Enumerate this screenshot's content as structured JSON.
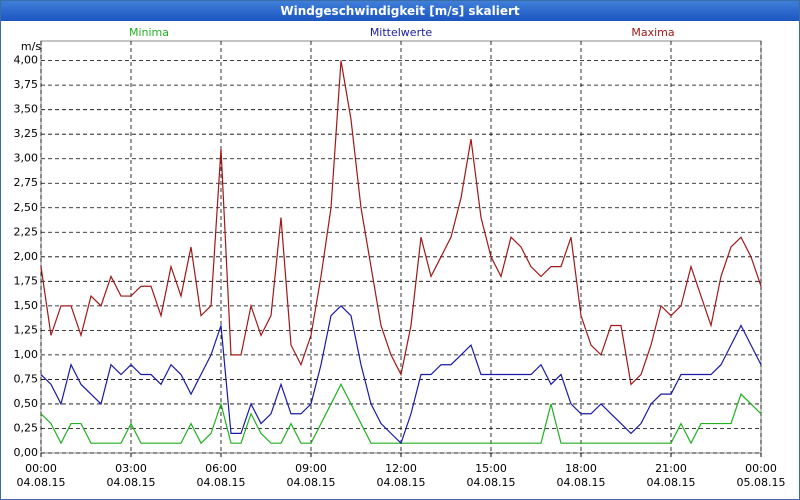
{
  "chart_data": {
    "type": "line",
    "title": "Windgeschwindigkeit [m/s] skaliert",
    "y_label": "m/s",
    "x": [
      0,
      20,
      40,
      60,
      80,
      100,
      120,
      140,
      160,
      180,
      200,
      220,
      240,
      260,
      280,
      300,
      320,
      340,
      360,
      380,
      400,
      420,
      440,
      460,
      480,
      500,
      520,
      540,
      560,
      580,
      600,
      620,
      640,
      660,
      680,
      700,
      720,
      740,
      760,
      780,
      800,
      820,
      840,
      860,
      880,
      900,
      920,
      940,
      960,
      980,
      1000,
      1020,
      1040,
      1060,
      1080,
      1100,
      1120,
      1140,
      1160,
      1180,
      1200,
      1220,
      1240,
      1260,
      1280,
      1300,
      1320,
      1340,
      1360,
      1380,
      1400,
      1420,
      1440
    ],
    "series": [
      {
        "name": "Minima",
        "color": "#22b022",
        "values": [
          0.4,
          0.3,
          0.1,
          0.3,
          0.3,
          0.1,
          0.1,
          0.1,
          0.1,
          0.3,
          0.1,
          0.1,
          0.1,
          0.1,
          0.1,
          0.3,
          0.1,
          0.2,
          0.5,
          0.1,
          0.1,
          0.4,
          0.2,
          0.1,
          0.1,
          0.3,
          0.1,
          0.1,
          0.3,
          0.5,
          0.7,
          0.5,
          0.3,
          0.1,
          0.1,
          0.1,
          0.1,
          0.1,
          0.1,
          0.1,
          0.1,
          0.1,
          0.1,
          0.1,
          0.1,
          0.1,
          0.1,
          0.1,
          0.1,
          0.1,
          0.1,
          0.5,
          0.1,
          0.1,
          0.1,
          0.1,
          0.1,
          0.1,
          0.1,
          0.1,
          0.1,
          0.1,
          0.1,
          0.1,
          0.3,
          0.1,
          0.3,
          0.3,
          0.3,
          0.3,
          0.6,
          0.5,
          0.4
        ]
      },
      {
        "name": "Mittelwerte",
        "color": "#1a1aa8",
        "values": [
          0.8,
          0.7,
          0.5,
          0.9,
          0.7,
          0.6,
          0.5,
          0.9,
          0.8,
          0.9,
          0.8,
          0.8,
          0.7,
          0.9,
          0.8,
          0.6,
          0.8,
          1.0,
          1.3,
          0.2,
          0.2,
          0.5,
          0.3,
          0.4,
          0.7,
          0.4,
          0.4,
          0.5,
          0.9,
          1.4,
          1.5,
          1.4,
          0.9,
          0.5,
          0.3,
          0.2,
          0.1,
          0.4,
          0.8,
          0.8,
          0.9,
          0.9,
          1.0,
          1.1,
          0.8,
          0.8,
          0.8,
          0.8,
          0.8,
          0.8,
          0.9,
          0.7,
          0.8,
          0.5,
          0.4,
          0.4,
          0.5,
          0.4,
          0.3,
          0.2,
          0.3,
          0.5,
          0.6,
          0.6,
          0.8,
          0.8,
          0.8,
          0.8,
          0.9,
          1.1,
          1.3,
          1.1,
          0.9
        ]
      },
      {
        "name": "Maxima",
        "color": "#a01818",
        "values": [
          1.9,
          1.2,
          1.5,
          1.5,
          1.2,
          1.6,
          1.5,
          1.8,
          1.6,
          1.6,
          1.7,
          1.7,
          1.4,
          1.9,
          1.6,
          2.1,
          1.4,
          1.5,
          3.1,
          1.0,
          1.0,
          1.5,
          1.2,
          1.4,
          2.4,
          1.1,
          0.9,
          1.2,
          1.8,
          2.5,
          4.0,
          3.4,
          2.5,
          1.9,
          1.3,
          1.0,
          0.8,
          1.3,
          2.2,
          1.8,
          2.0,
          2.2,
          2.6,
          3.2,
          2.4,
          2.0,
          1.8,
          2.2,
          2.1,
          1.9,
          1.8,
          1.9,
          1.9,
          2.2,
          1.4,
          1.1,
          1.0,
          1.3,
          1.3,
          0.7,
          0.8,
          1.1,
          1.5,
          1.4,
          1.5,
          1.9,
          1.6,
          1.3,
          1.8,
          2.1,
          2.2,
          2.0,
          1.7
        ]
      }
    ],
    "xlim": [
      0,
      1440
    ],
    "xticks": [
      {
        "value": 0,
        "label": "00:00\n04.08.15"
      },
      {
        "value": 180,
        "label": "03:00\n04.08.15"
      },
      {
        "value": 360,
        "label": "06:00\n04.08.15"
      },
      {
        "value": 540,
        "label": "09:00\n04.08.15"
      },
      {
        "value": 720,
        "label": "12:00\n04.08.15"
      },
      {
        "value": 900,
        "label": "15:00\n04.08.15"
      },
      {
        "value": 1080,
        "label": "18:00\n04.08.15"
      },
      {
        "value": 1260,
        "label": "21:00\n04.08.15"
      },
      {
        "value": 1440,
        "label": "00:00\n05.08.15"
      }
    ],
    "ylim": [
      0,
      4.2
    ],
    "yticks": [
      {
        "value": 0,
        "label": "0,00"
      },
      {
        "value": 0.25,
        "label": "0,25"
      },
      {
        "value": 0.5,
        "label": "0,50"
      },
      {
        "value": 0.75,
        "label": "0,75"
      },
      {
        "value": 1,
        "label": "1,00"
      },
      {
        "value": 1.25,
        "label": "1,25"
      },
      {
        "value": 1.5,
        "label": "1,50"
      },
      {
        "value": 1.75,
        "label": "1,75"
      },
      {
        "value": 2,
        "label": "2,00"
      },
      {
        "value": 2.25,
        "label": "2,25"
      },
      {
        "value": 2.5,
        "label": "2,50"
      },
      {
        "value": 2.75,
        "label": "2,75"
      },
      {
        "value": 3,
        "label": "3,00"
      },
      {
        "value": 3.25,
        "label": "3,25"
      },
      {
        "value": 3.5,
        "label": "3,50"
      },
      {
        "value": 3.75,
        "label": "3,75"
      },
      {
        "value": 4,
        "label": "4,00"
      }
    ],
    "grid": true
  }
}
